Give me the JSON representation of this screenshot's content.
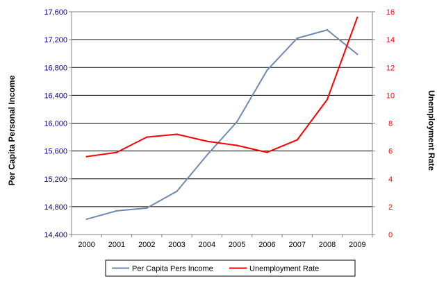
{
  "chart_data": {
    "type": "line",
    "categories": [
      "2000",
      "2001",
      "2002",
      "2003",
      "2004",
      "2005",
      "2006",
      "2007",
      "2008",
      "2009"
    ],
    "series": [
      {
        "name": "Per Capita Pers Income",
        "axis": "left",
        "color": "#6f8ab0",
        "values": [
          14620,
          14740,
          14780,
          15020,
          15540,
          16020,
          16760,
          17220,
          17340,
          16990
        ]
      },
      {
        "name": "Unemployment Rate",
        "axis": "right",
        "color": "#ff0000",
        "values": [
          5.6,
          5.9,
          7.0,
          7.2,
          6.7,
          6.4,
          5.9,
          6.8,
          9.7,
          15.6
        ]
      }
    ],
    "ylabel": "Per Capita Personal Income",
    "y2label": "Unemployment Rate",
    "ylim": [
      14400,
      17600
    ],
    "y2lim": [
      0,
      16
    ],
    "yticks": [
      "14,400",
      "14,800",
      "15,200",
      "15,600",
      "16,000",
      "16,400",
      "16,800",
      "17,200",
      "17,600"
    ],
    "y2ticks": [
      "0",
      "2",
      "4",
      "6",
      "8",
      "10",
      "12",
      "14",
      "16"
    ],
    "left_axis_color": "#000080",
    "right_axis_color": "#ff0000",
    "grid": true,
    "legend_position": "bottom"
  }
}
